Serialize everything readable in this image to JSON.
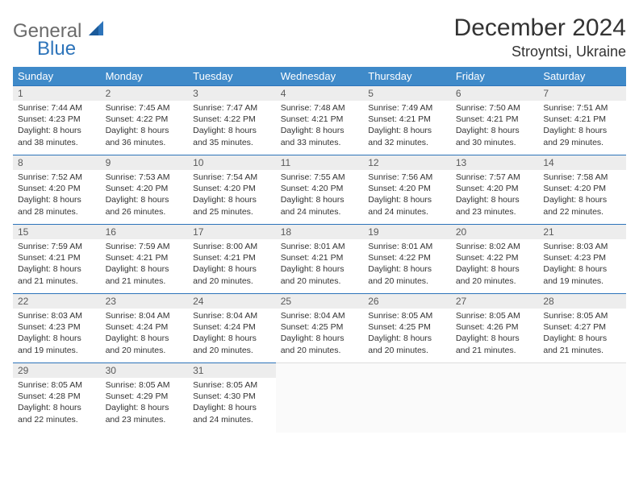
{
  "logo": {
    "text1": "General",
    "text2": "Blue",
    "sail_color": "#2d74ba"
  },
  "title": "December 2024",
  "location": "Stroyntsi, Ukraine",
  "weekdays": [
    "Sunday",
    "Monday",
    "Tuesday",
    "Wednesday",
    "Thursday",
    "Friday",
    "Saturday"
  ],
  "colors": {
    "header_bg": "#3f8ac9",
    "header_text": "#ffffff",
    "daynum_bg": "#ededed",
    "border": "#2d74ba",
    "logo_gray": "#6b6b6b",
    "logo_blue": "#2d74ba"
  },
  "weeks": [
    [
      {
        "d": "1",
        "sr": "Sunrise: 7:44 AM",
        "ss": "Sunset: 4:23 PM",
        "dl1": "Daylight: 8 hours",
        "dl2": "and 38 minutes."
      },
      {
        "d": "2",
        "sr": "Sunrise: 7:45 AM",
        "ss": "Sunset: 4:22 PM",
        "dl1": "Daylight: 8 hours",
        "dl2": "and 36 minutes."
      },
      {
        "d": "3",
        "sr": "Sunrise: 7:47 AM",
        "ss": "Sunset: 4:22 PM",
        "dl1": "Daylight: 8 hours",
        "dl2": "and 35 minutes."
      },
      {
        "d": "4",
        "sr": "Sunrise: 7:48 AM",
        "ss": "Sunset: 4:21 PM",
        "dl1": "Daylight: 8 hours",
        "dl2": "and 33 minutes."
      },
      {
        "d": "5",
        "sr": "Sunrise: 7:49 AM",
        "ss": "Sunset: 4:21 PM",
        "dl1": "Daylight: 8 hours",
        "dl2": "and 32 minutes."
      },
      {
        "d": "6",
        "sr": "Sunrise: 7:50 AM",
        "ss": "Sunset: 4:21 PM",
        "dl1": "Daylight: 8 hours",
        "dl2": "and 30 minutes."
      },
      {
        "d": "7",
        "sr": "Sunrise: 7:51 AM",
        "ss": "Sunset: 4:21 PM",
        "dl1": "Daylight: 8 hours",
        "dl2": "and 29 minutes."
      }
    ],
    [
      {
        "d": "8",
        "sr": "Sunrise: 7:52 AM",
        "ss": "Sunset: 4:20 PM",
        "dl1": "Daylight: 8 hours",
        "dl2": "and 28 minutes."
      },
      {
        "d": "9",
        "sr": "Sunrise: 7:53 AM",
        "ss": "Sunset: 4:20 PM",
        "dl1": "Daylight: 8 hours",
        "dl2": "and 26 minutes."
      },
      {
        "d": "10",
        "sr": "Sunrise: 7:54 AM",
        "ss": "Sunset: 4:20 PM",
        "dl1": "Daylight: 8 hours",
        "dl2": "and 25 minutes."
      },
      {
        "d": "11",
        "sr": "Sunrise: 7:55 AM",
        "ss": "Sunset: 4:20 PM",
        "dl1": "Daylight: 8 hours",
        "dl2": "and 24 minutes."
      },
      {
        "d": "12",
        "sr": "Sunrise: 7:56 AM",
        "ss": "Sunset: 4:20 PM",
        "dl1": "Daylight: 8 hours",
        "dl2": "and 24 minutes."
      },
      {
        "d": "13",
        "sr": "Sunrise: 7:57 AM",
        "ss": "Sunset: 4:20 PM",
        "dl1": "Daylight: 8 hours",
        "dl2": "and 23 minutes."
      },
      {
        "d": "14",
        "sr": "Sunrise: 7:58 AM",
        "ss": "Sunset: 4:20 PM",
        "dl1": "Daylight: 8 hours",
        "dl2": "and 22 minutes."
      }
    ],
    [
      {
        "d": "15",
        "sr": "Sunrise: 7:59 AM",
        "ss": "Sunset: 4:21 PM",
        "dl1": "Daylight: 8 hours",
        "dl2": "and 21 minutes."
      },
      {
        "d": "16",
        "sr": "Sunrise: 7:59 AM",
        "ss": "Sunset: 4:21 PM",
        "dl1": "Daylight: 8 hours",
        "dl2": "and 21 minutes."
      },
      {
        "d": "17",
        "sr": "Sunrise: 8:00 AM",
        "ss": "Sunset: 4:21 PM",
        "dl1": "Daylight: 8 hours",
        "dl2": "and 20 minutes."
      },
      {
        "d": "18",
        "sr": "Sunrise: 8:01 AM",
        "ss": "Sunset: 4:21 PM",
        "dl1": "Daylight: 8 hours",
        "dl2": "and 20 minutes."
      },
      {
        "d": "19",
        "sr": "Sunrise: 8:01 AM",
        "ss": "Sunset: 4:22 PM",
        "dl1": "Daylight: 8 hours",
        "dl2": "and 20 minutes."
      },
      {
        "d": "20",
        "sr": "Sunrise: 8:02 AM",
        "ss": "Sunset: 4:22 PM",
        "dl1": "Daylight: 8 hours",
        "dl2": "and 20 minutes."
      },
      {
        "d": "21",
        "sr": "Sunrise: 8:03 AM",
        "ss": "Sunset: 4:23 PM",
        "dl1": "Daylight: 8 hours",
        "dl2": "and 19 minutes."
      }
    ],
    [
      {
        "d": "22",
        "sr": "Sunrise: 8:03 AM",
        "ss": "Sunset: 4:23 PM",
        "dl1": "Daylight: 8 hours",
        "dl2": "and 19 minutes."
      },
      {
        "d": "23",
        "sr": "Sunrise: 8:04 AM",
        "ss": "Sunset: 4:24 PM",
        "dl1": "Daylight: 8 hours",
        "dl2": "and 20 minutes."
      },
      {
        "d": "24",
        "sr": "Sunrise: 8:04 AM",
        "ss": "Sunset: 4:24 PM",
        "dl1": "Daylight: 8 hours",
        "dl2": "and 20 minutes."
      },
      {
        "d": "25",
        "sr": "Sunrise: 8:04 AM",
        "ss": "Sunset: 4:25 PM",
        "dl1": "Daylight: 8 hours",
        "dl2": "and 20 minutes."
      },
      {
        "d": "26",
        "sr": "Sunrise: 8:05 AM",
        "ss": "Sunset: 4:25 PM",
        "dl1": "Daylight: 8 hours",
        "dl2": "and 20 minutes."
      },
      {
        "d": "27",
        "sr": "Sunrise: 8:05 AM",
        "ss": "Sunset: 4:26 PM",
        "dl1": "Daylight: 8 hours",
        "dl2": "and 21 minutes."
      },
      {
        "d": "28",
        "sr": "Sunrise: 8:05 AM",
        "ss": "Sunset: 4:27 PM",
        "dl1": "Daylight: 8 hours",
        "dl2": "and 21 minutes."
      }
    ],
    [
      {
        "d": "29",
        "sr": "Sunrise: 8:05 AM",
        "ss": "Sunset: 4:28 PM",
        "dl1": "Daylight: 8 hours",
        "dl2": "and 22 minutes."
      },
      {
        "d": "30",
        "sr": "Sunrise: 8:05 AM",
        "ss": "Sunset: 4:29 PM",
        "dl1": "Daylight: 8 hours",
        "dl2": "and 23 minutes."
      },
      {
        "d": "31",
        "sr": "Sunrise: 8:05 AM",
        "ss": "Sunset: 4:30 PM",
        "dl1": "Daylight: 8 hours",
        "dl2": "and 24 minutes."
      },
      null,
      null,
      null,
      null
    ]
  ]
}
